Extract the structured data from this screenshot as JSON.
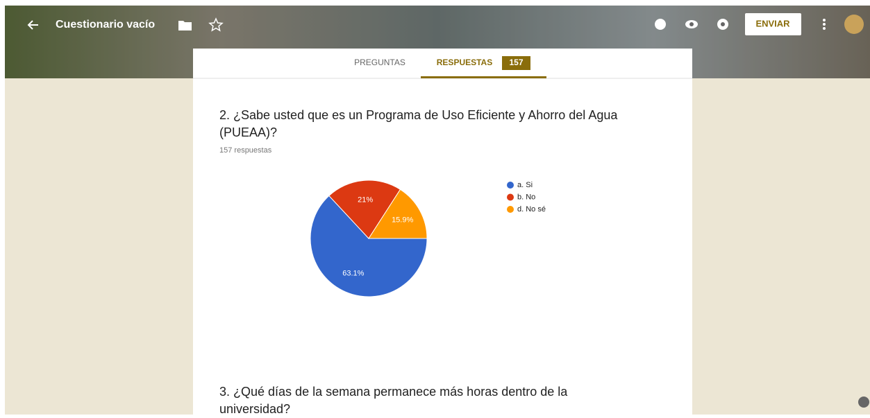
{
  "header": {
    "title": "Cuestionario vacío",
    "send": "ENVIAR"
  },
  "tabs": {
    "questions": "PREGUNTAS",
    "responses": "RESPUESTAS",
    "count": "157"
  },
  "question_2": {
    "title_line1": "2. ¿Sabe usted que es un Programa de Uso Eficiente y Ahorro del Agua",
    "title_line2": "(PUEAA)?",
    "responses": "157 respuestas"
  },
  "chart_data": {
    "type": "pie",
    "categories": [
      "a. Si",
      "b. No",
      "d. No sé"
    ],
    "values": [
      63.1,
      21,
      15.9
    ],
    "value_labels": [
      "63.1%",
      "21%",
      "15.9%"
    ],
    "colors": [
      "#3366cc",
      "#dc3912",
      "#ff9900"
    ],
    "legend": "right"
  },
  "question_3": {
    "title_line1": "3. ¿Qué días de la semana permanece más horas dentro de la",
    "title_line2": "universidad?"
  }
}
